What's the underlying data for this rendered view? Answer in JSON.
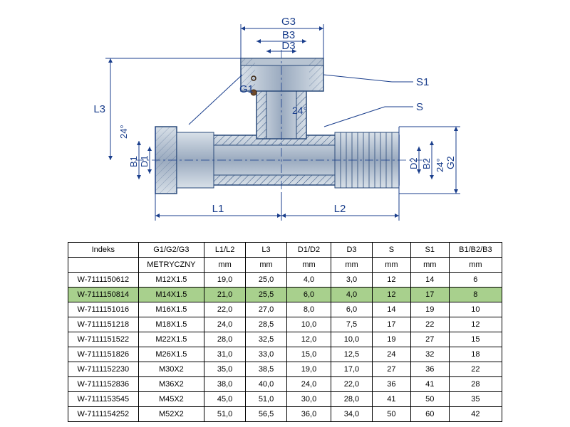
{
  "diagram": {
    "labels": {
      "G1": "G1",
      "G2": "G2",
      "G3": "G3",
      "L1": "L1",
      "L2": "L2",
      "L3": "L3",
      "D1": "D1",
      "D2": "D2",
      "D3": "D3",
      "B1": "B1",
      "B2": "B2",
      "B3": "B3",
      "S": "S",
      "S1": "S1",
      "angle": "24°"
    },
    "colors": {
      "dimension_line": "#1a3e8c",
      "dimension_text": "#1a3e8c",
      "part_outline": "#2a4a7a",
      "part_fill_light": "#c0ccd8",
      "part_fill_dark": "#8a9ab0",
      "hatch": "#2a4a7a",
      "centerline": "#1a3e8c",
      "seal": "#704a2a"
    }
  },
  "table": {
    "headers": [
      "Indeks",
      "G1/G2/G3",
      "L1/L2",
      "L3",
      "D1/D2",
      "D3",
      "S",
      "S1",
      "B1/B2/B3"
    ],
    "units": [
      "",
      "METRYCZNY",
      "mm",
      "mm",
      "mm",
      "mm",
      "mm",
      "mm",
      "mm"
    ],
    "highlight_index": 1,
    "highlight_color": "#a8d08d",
    "rows": [
      [
        "W-7111150612",
        "M12X1.5",
        "19,0",
        "25,0",
        "4,0",
        "3,0",
        "12",
        "14",
        "6"
      ],
      [
        "W-7111150814",
        "M14X1.5",
        "21,0",
        "25,5",
        "6,0",
        "4,0",
        "12",
        "17",
        "8"
      ],
      [
        "W-7111151016",
        "M16X1.5",
        "22,0",
        "27,0",
        "8,0",
        "6,0",
        "14",
        "19",
        "10"
      ],
      [
        "W-7111151218",
        "M18X1.5",
        "24,0",
        "28,5",
        "10,0",
        "7,5",
        "17",
        "22",
        "12"
      ],
      [
        "W-7111151522",
        "M22X1.5",
        "28,0",
        "32,5",
        "12,0",
        "10,0",
        "19",
        "27",
        "15"
      ],
      [
        "W-7111151826",
        "M26X1.5",
        "31,0",
        "33,0",
        "15,0",
        "12,5",
        "24",
        "32",
        "18"
      ],
      [
        "W-7111152230",
        "M30X2",
        "35,0",
        "38,5",
        "19,0",
        "17,0",
        "27",
        "36",
        "22"
      ],
      [
        "W-7111152836",
        "M36X2",
        "38,0",
        "40,0",
        "24,0",
        "22,0",
        "36",
        "41",
        "28"
      ],
      [
        "W-7111153545",
        "M45X2",
        "45,0",
        "51,0",
        "30,0",
        "28,0",
        "41",
        "50",
        "35"
      ],
      [
        "W-7111154252",
        "M52X2",
        "51,0",
        "56,5",
        "36,0",
        "34,0",
        "50",
        "60",
        "42"
      ]
    ]
  }
}
